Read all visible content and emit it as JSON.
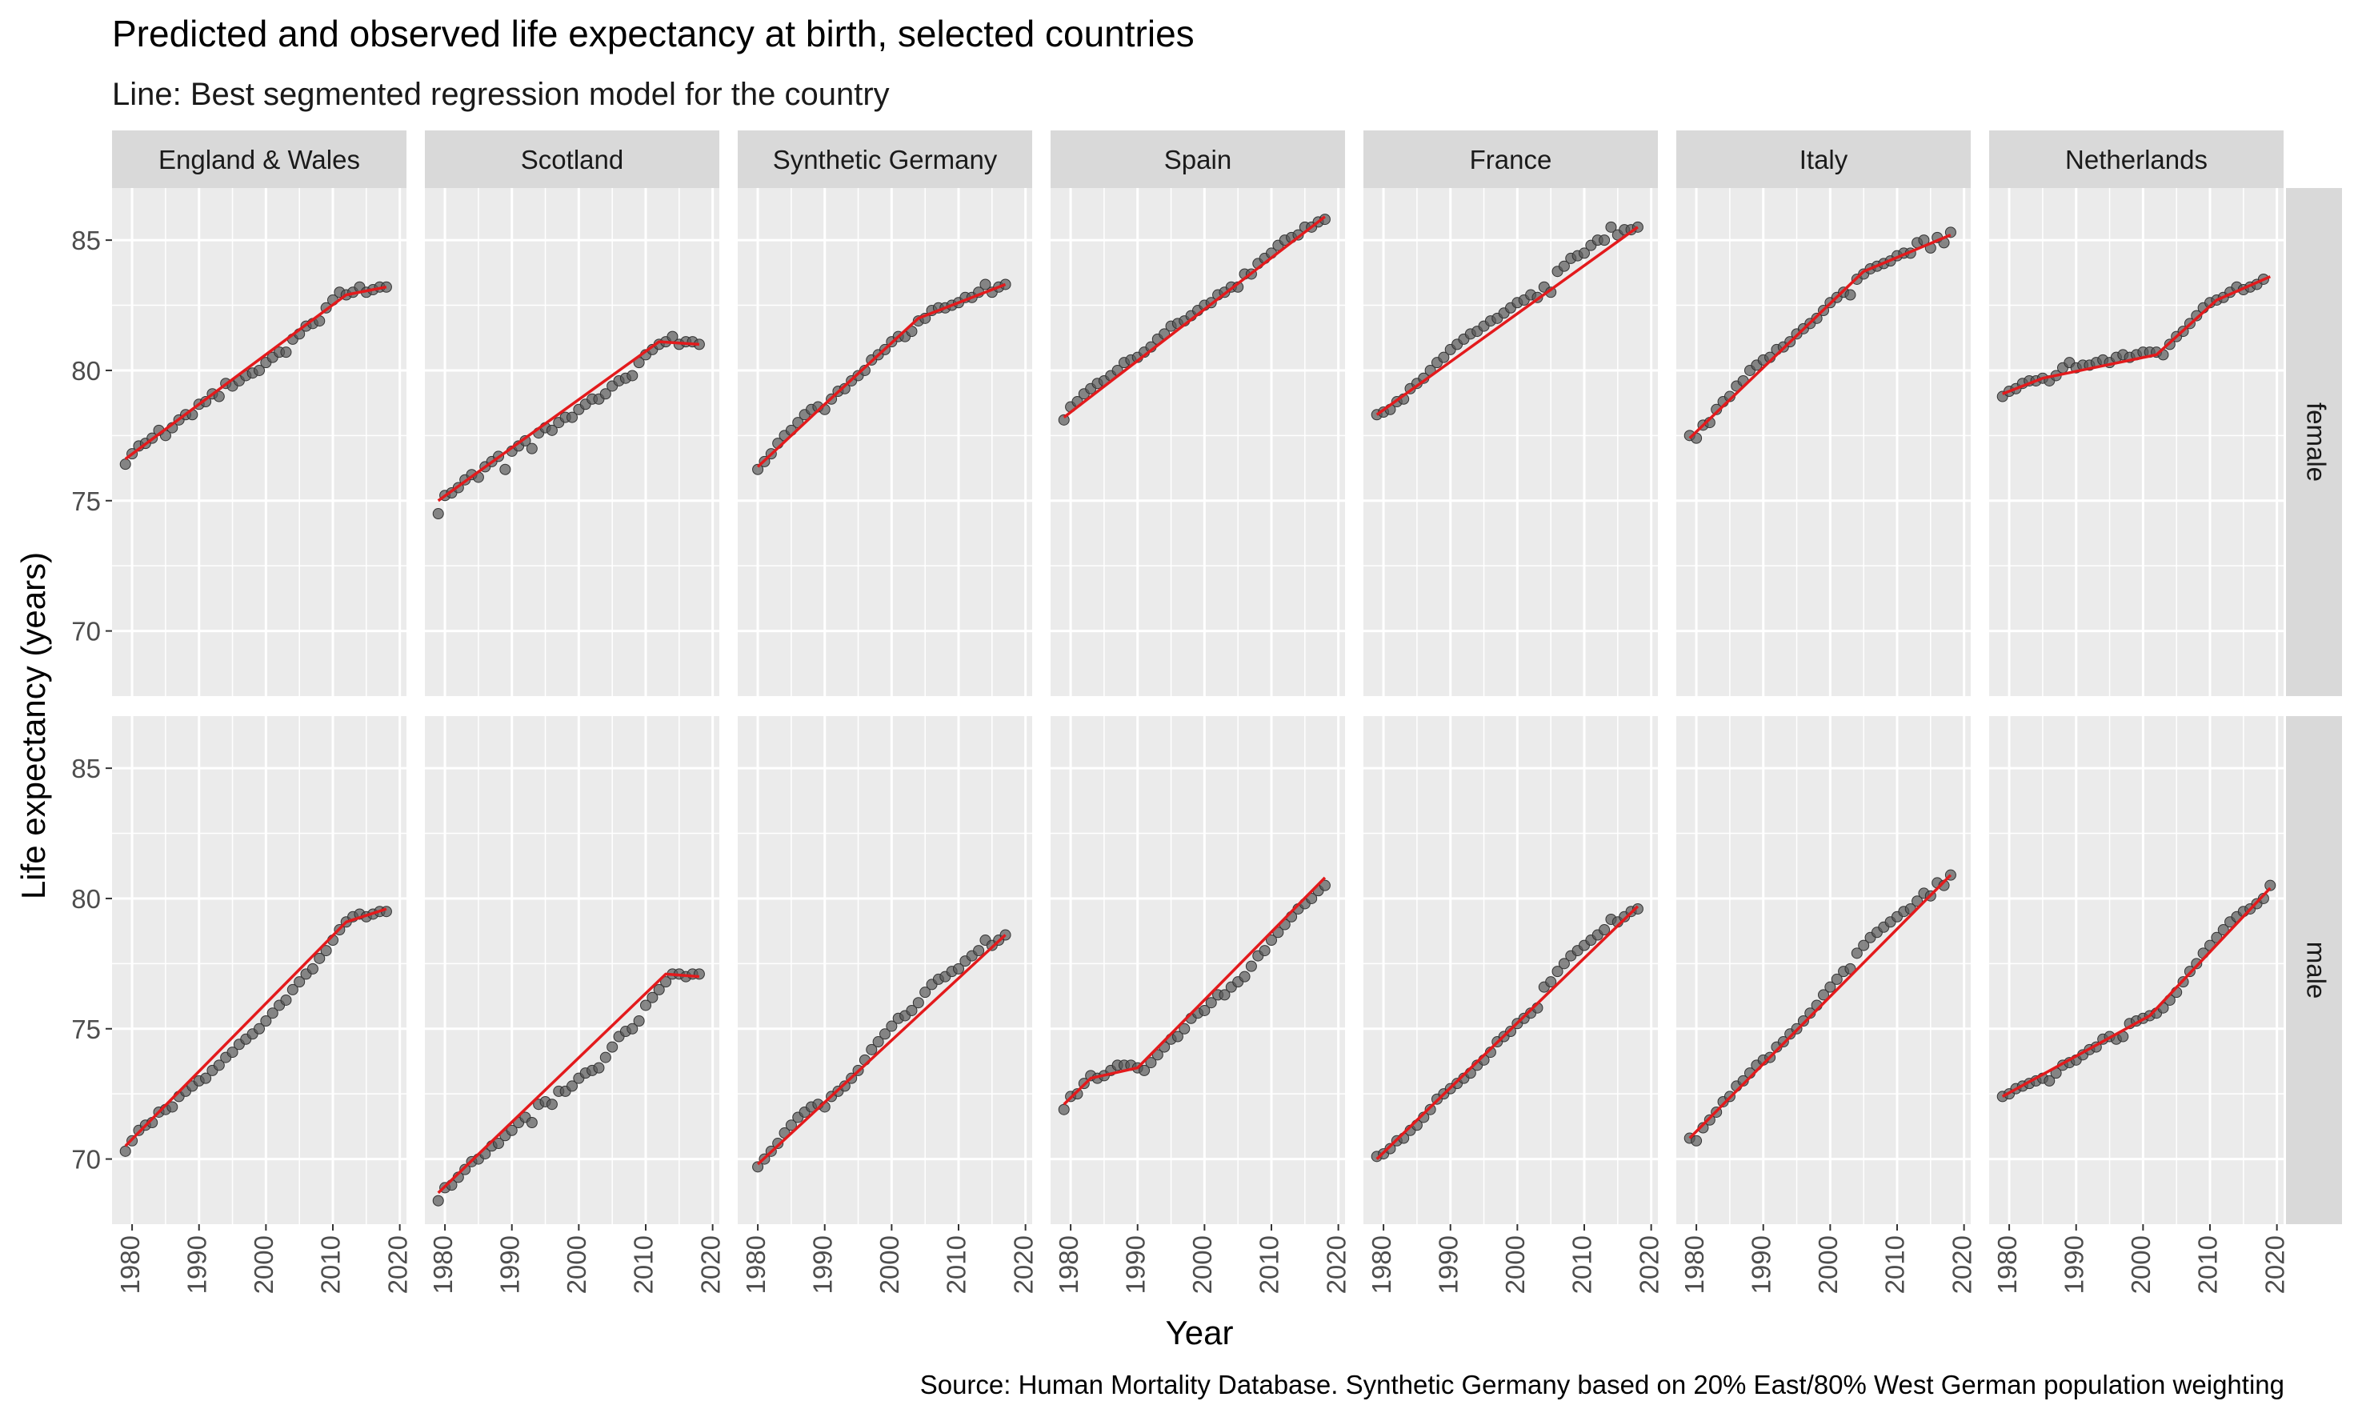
{
  "title": "Predicted and observed life expectancy at birth, selected countries",
  "subtitle": "Line: Best segmented regression model for the country",
  "caption": "Source: Human Mortality Database. Synthetic Germany based on 20% East/80% West German population weighting",
  "colors": {
    "panel_bg": "#EBEBEB",
    "strip_bg": "#D9D9D9",
    "grid": "#FFFFFF",
    "point": "#595959",
    "line": "#E31A1C",
    "text": "#1A1A1A",
    "tick_text": "#4D4D4D"
  },
  "chart_data": {
    "type": "scatter",
    "title": "Predicted and observed life expectancy at birth, selected countries",
    "subtitle": "Line: Best segmented regression model for the country",
    "xlabel": "Year",
    "ylabel": "Life expectancy (years)",
    "xlim": [
      1977,
      2021
    ],
    "ylim": [
      67.5,
      87
    ],
    "xticks": [
      1980,
      1990,
      2000,
      2010,
      2020
    ],
    "yticks": [
      70,
      75,
      80,
      85
    ],
    "columns": [
      "England & Wales",
      "Scotland",
      "Synthetic Germany",
      "Spain",
      "France",
      "Italy",
      "Netherlands"
    ],
    "rows": [
      "female",
      "male"
    ],
    "grid": true,
    "panels": [
      {
        "country": "England & Wales",
        "sex": "female",
        "start": 1979,
        "y": [
          76.4,
          76.8,
          77.1,
          77.2,
          77.4,
          77.7,
          77.5,
          77.8,
          78.1,
          78.3,
          78.3,
          78.7,
          78.8,
          79.1,
          79.0,
          79.5,
          79.4,
          79.6,
          79.8,
          79.9,
          80.0,
          80.3,
          80.5,
          80.7,
          80.7,
          81.2,
          81.4,
          81.7,
          81.8,
          81.9,
          82.4,
          82.7,
          83.0,
          82.9,
          83.0,
          83.2,
          83.0,
          83.1,
          83.2,
          83.2
        ],
        "fit_x": [
          1979,
          2012,
          2018
        ],
        "fit_y": [
          76.6,
          82.9,
          83.2
        ]
      },
      {
        "country": "Scotland",
        "sex": "female",
        "start": 1979,
        "y": [
          74.5,
          75.2,
          75.3,
          75.5,
          75.8,
          76.0,
          75.9,
          76.3,
          76.5,
          76.7,
          76.2,
          76.9,
          77.1,
          77.3,
          77.0,
          77.6,
          77.8,
          77.7,
          78.0,
          78.2,
          78.2,
          78.5,
          78.7,
          78.9,
          78.9,
          79.1,
          79.4,
          79.6,
          79.7,
          79.8,
          80.3,
          80.6,
          80.8,
          81.0,
          81.1,
          81.3,
          81.0,
          81.1,
          81.1,
          81.0
        ],
        "fit_x": [
          1979,
          2012,
          2018
        ],
        "fit_y": [
          75.0,
          81.1,
          81.0
        ]
      },
      {
        "country": "Synthetic Germany",
        "sex": "female",
        "start": 1980,
        "y": [
          76.2,
          76.5,
          76.8,
          77.2,
          77.5,
          77.7,
          78.0,
          78.3,
          78.5,
          78.6,
          78.5,
          78.9,
          79.2,
          79.3,
          79.6,
          79.8,
          80.0,
          80.4,
          80.6,
          80.8,
          81.1,
          81.3,
          81.3,
          81.5,
          81.9,
          82.0,
          82.3,
          82.4,
          82.4,
          82.5,
          82.6,
          82.8,
          82.8,
          83.0,
          83.3,
          83.0,
          83.2,
          83.3
        ],
        "fit_x": [
          1980,
          1990,
          2004,
          2017
        ],
        "fit_y": [
          76.3,
          78.7,
          82.0,
          83.3
        ]
      },
      {
        "country": "Spain",
        "sex": "female",
        "start": 1979,
        "y": [
          78.1,
          78.6,
          78.8,
          79.1,
          79.3,
          79.5,
          79.6,
          79.8,
          80.0,
          80.3,
          80.4,
          80.5,
          80.7,
          80.9,
          81.2,
          81.4,
          81.7,
          81.8,
          81.9,
          82.1,
          82.3,
          82.5,
          82.6,
          82.9,
          83.0,
          83.2,
          83.2,
          83.7,
          83.7,
          84.1,
          84.3,
          84.5,
          84.8,
          85.0,
          85.1,
          85.2,
          85.5,
          85.5,
          85.7,
          85.8
        ],
        "fit_x": [
          1979,
          2018
        ],
        "fit_y": [
          78.2,
          85.9
        ]
      },
      {
        "country": "France",
        "sex": "female",
        "start": 1979,
        "y": [
          78.3,
          78.4,
          78.5,
          78.8,
          78.9,
          79.3,
          79.5,
          79.7,
          80.0,
          80.3,
          80.5,
          80.8,
          81.0,
          81.2,
          81.4,
          81.5,
          81.7,
          81.9,
          82.0,
          82.2,
          82.4,
          82.6,
          82.7,
          82.9,
          82.8,
          83.2,
          83.0,
          83.8,
          84.0,
          84.3,
          84.4,
          84.5,
          84.8,
          85.0,
          85.0,
          85.5,
          85.2,
          85.4,
          85.4,
          85.5
        ],
        "fit_x": [
          1979,
          2018
        ],
        "fit_y": [
          78.3,
          85.5
        ]
      },
      {
        "country": "Italy",
        "sex": "female",
        "start": 1979,
        "y": [
          77.5,
          77.4,
          77.9,
          78.0,
          78.5,
          78.8,
          79.0,
          79.4,
          79.6,
          80.0,
          80.2,
          80.4,
          80.5,
          80.8,
          80.9,
          81.1,
          81.4,
          81.6,
          81.8,
          82.0,
          82.3,
          82.6,
          82.8,
          83.0,
          82.9,
          83.5,
          83.7,
          83.9,
          84.0,
          84.1,
          84.2,
          84.4,
          84.5,
          84.5,
          84.9,
          85.0,
          84.7,
          85.1,
          84.9,
          85.3
        ],
        "fit_x": [
          1979,
          2005,
          2018
        ],
        "fit_y": [
          77.4,
          83.8,
          85.2
        ]
      },
      {
        "country": "Netherlands",
        "sex": "female",
        "start": 1979,
        "y": [
          79.0,
          79.2,
          79.3,
          79.5,
          79.6,
          79.6,
          79.7,
          79.6,
          79.8,
          80.1,
          80.3,
          80.1,
          80.2,
          80.2,
          80.3,
          80.4,
          80.3,
          80.5,
          80.6,
          80.5,
          80.6,
          80.7,
          80.7,
          80.7,
          80.6,
          81.0,
          81.3,
          81.5,
          81.8,
          82.1,
          82.4,
          82.6,
          82.7,
          82.8,
          83.0,
          83.2,
          83.1,
          83.2,
          83.3,
          83.5
        ],
        "fit_x": [
          1979,
          1985,
          2002,
          2011,
          2019
        ],
        "fit_y": [
          79.1,
          79.7,
          80.6,
          82.7,
          83.6
        ]
      },
      {
        "country": "England & Wales",
        "sex": "male",
        "start": 1979,
        "y": [
          70.3,
          70.7,
          71.1,
          71.3,
          71.4,
          71.8,
          71.9,
          72.0,
          72.4,
          72.6,
          72.8,
          73.0,
          73.1,
          73.4,
          73.6,
          73.9,
          74.1,
          74.4,
          74.6,
          74.8,
          75.0,
          75.3,
          75.6,
          75.9,
          76.1,
          76.5,
          76.8,
          77.1,
          77.3,
          77.7,
          78.0,
          78.4,
          78.8,
          79.1,
          79.3,
          79.4,
          79.3,
          79.4,
          79.5,
          79.5
        ],
        "fit_x": [
          1979,
          2012,
          2018
        ],
        "fit_y": [
          70.5,
          79.1,
          79.6
        ]
      },
      {
        "country": "Scotland",
        "sex": "male",
        "start": 1979,
        "y": [
          68.4,
          68.9,
          69.0,
          69.3,
          69.6,
          69.9,
          70.0,
          70.2,
          70.5,
          70.6,
          70.9,
          71.1,
          71.4,
          71.6,
          71.4,
          72.1,
          72.2,
          72.1,
          72.6,
          72.6,
          72.8,
          73.1,
          73.3,
          73.4,
          73.5,
          73.9,
          74.3,
          74.7,
          74.9,
          75.0,
          75.3,
          75.9,
          76.2,
          76.5,
          76.8,
          77.1,
          77.1,
          77.0,
          77.1,
          77.1
        ],
        "fit_x": [
          1979,
          2013,
          2018
        ],
        "fit_y": [
          68.7,
          77.1,
          77.0
        ]
      },
      {
        "country": "Synthetic Germany",
        "sex": "male",
        "start": 1980,
        "y": [
          69.7,
          70.0,
          70.3,
          70.6,
          71.0,
          71.3,
          71.6,
          71.8,
          72.0,
          72.1,
          72.0,
          72.4,
          72.6,
          72.8,
          73.1,
          73.4,
          73.8,
          74.2,
          74.5,
          74.8,
          75.1,
          75.4,
          75.5,
          75.7,
          76.0,
          76.4,
          76.7,
          76.9,
          77.0,
          77.2,
          77.3,
          77.6,
          77.8,
          78.0,
          78.4,
          78.2,
          78.4,
          78.6
        ],
        "fit_x": [
          1980,
          2017
        ],
        "fit_y": [
          69.8,
          78.6
        ]
      },
      {
        "country": "Spain",
        "sex": "male",
        "start": 1979,
        "y": [
          71.9,
          72.4,
          72.5,
          72.9,
          73.2,
          73.1,
          73.2,
          73.4,
          73.6,
          73.6,
          73.6,
          73.5,
          73.4,
          73.7,
          74.0,
          74.3,
          74.6,
          74.7,
          75.0,
          75.4,
          75.6,
          75.7,
          76.0,
          76.3,
          76.3,
          76.6,
          76.8,
          77.0,
          77.4,
          77.8,
          78.0,
          78.4,
          78.7,
          79.0,
          79.3,
          79.6,
          79.8,
          80.0,
          80.3,
          80.5
        ],
        "fit_x": [
          1979,
          1983,
          1990,
          2018
        ],
        "fit_y": [
          72.1,
          73.1,
          73.5,
          80.8
        ]
      },
      {
        "country": "France",
        "sex": "male",
        "start": 1979,
        "y": [
          70.1,
          70.2,
          70.4,
          70.7,
          70.8,
          71.1,
          71.3,
          71.6,
          71.9,
          72.3,
          72.5,
          72.7,
          72.9,
          73.1,
          73.3,
          73.6,
          73.8,
          74.1,
          74.5,
          74.7,
          74.9,
          75.2,
          75.4,
          75.6,
          75.8,
          76.6,
          76.8,
          77.2,
          77.5,
          77.8,
          78.0,
          78.2,
          78.4,
          78.6,
          78.8,
          79.2,
          79.1,
          79.3,
          79.5,
          79.6
        ],
        "fit_x": [
          1979,
          2018
        ],
        "fit_y": [
          70.0,
          79.7
        ]
      },
      {
        "country": "Italy",
        "sex": "male",
        "start": 1979,
        "y": [
          70.8,
          70.7,
          71.2,
          71.5,
          71.8,
          72.2,
          72.4,
          72.8,
          73.0,
          73.3,
          73.6,
          73.8,
          73.9,
          74.3,
          74.5,
          74.8,
          75.0,
          75.3,
          75.6,
          75.9,
          76.3,
          76.6,
          76.9,
          77.2,
          77.3,
          77.9,
          78.2,
          78.5,
          78.7,
          78.9,
          79.1,
          79.3,
          79.5,
          79.6,
          79.9,
          80.2,
          80.1,
          80.6,
          80.5,
          80.9
        ],
        "fit_x": [
          1979,
          2018
        ],
        "fit_y": [
          70.8,
          80.9
        ]
      },
      {
        "country": "Netherlands",
        "sex": "male",
        "start": 1979,
        "y": [
          72.4,
          72.5,
          72.7,
          72.8,
          72.9,
          73.0,
          73.1,
          73.0,
          73.3,
          73.6,
          73.7,
          73.8,
          74.0,
          74.2,
          74.3,
          74.6,
          74.7,
          74.6,
          74.7,
          75.2,
          75.3,
          75.4,
          75.5,
          75.6,
          75.8,
          76.1,
          76.4,
          76.8,
          77.2,
          77.5,
          77.9,
          78.2,
          78.5,
          78.8,
          79.1,
          79.3,
          79.5,
          79.6,
          79.8,
          80.0,
          80.5
        ],
        "fit_x": [
          1979,
          2001,
          2019
        ],
        "fit_y": [
          72.4,
          75.5,
          80.4
        ]
      }
    ]
  }
}
